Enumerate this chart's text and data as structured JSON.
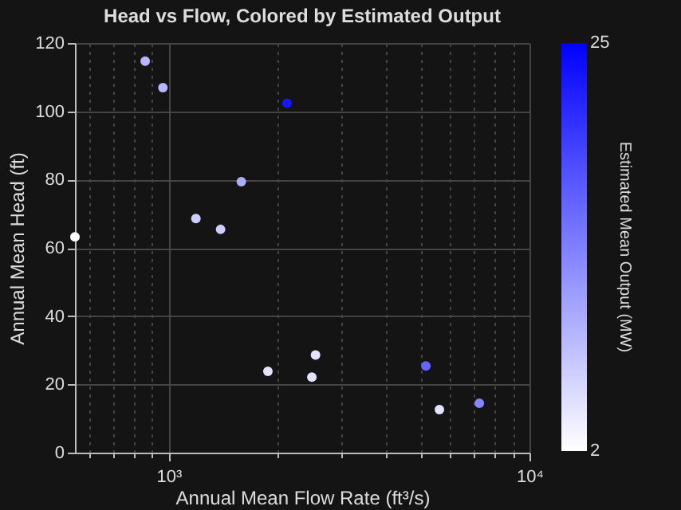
{
  "chart_data": {
    "type": "scatter",
    "title": "Head vs Flow, Colored by Estimated Output",
    "xlabel": "Annual Mean Flow Rate (ft³/s)",
    "ylabel": "Annual Mean Head (ft)",
    "clabel": "Estimated Mean Output (MW)",
    "x": [
      861,
      964,
      2128,
      1590,
      1190,
      1393,
      550,
      1884,
      2553,
      2494,
      5164,
      5628,
      7262
    ],
    "values": [
      114.7,
      106.9,
      102.4,
      79.4,
      68.6,
      65.4,
      63.2,
      23.8,
      28.6,
      22.1,
      25.4,
      12.6,
      14.5
    ],
    "cvalues": [
      8.5,
      8.5,
      23,
      9.5,
      6.5,
      6.5,
      2,
      4.5,
      4.5,
      4.5,
      16,
      4.5,
      13
    ],
    "log": "x",
    "xlim": [
      550,
      10000
    ],
    "ylim": [
      0,
      120
    ],
    "xticks": [
      {
        "value": 600,
        "label": null
      },
      {
        "value": 700,
        "label": null
      },
      {
        "value": 800,
        "label": null
      },
      {
        "value": 900,
        "label": null
      },
      {
        "value": 1000,
        "label": "10³"
      },
      {
        "value": 2000,
        "label": null
      },
      {
        "value": 3000,
        "label": null
      },
      {
        "value": 4000,
        "label": null
      },
      {
        "value": 5000,
        "label": null
      },
      {
        "value": 6000,
        "label": null
      },
      {
        "value": 7000,
        "label": null
      },
      {
        "value": 8000,
        "label": null
      },
      {
        "value": 9000,
        "label": null
      },
      {
        "value": 10000,
        "label": "10⁴"
      }
    ],
    "yticks": [
      0,
      20,
      40,
      60,
      80,
      100,
      120
    ],
    "clim": [
      2,
      25
    ],
    "cticks": [
      2,
      25
    ],
    "grid": true,
    "marker": "circle"
  }
}
